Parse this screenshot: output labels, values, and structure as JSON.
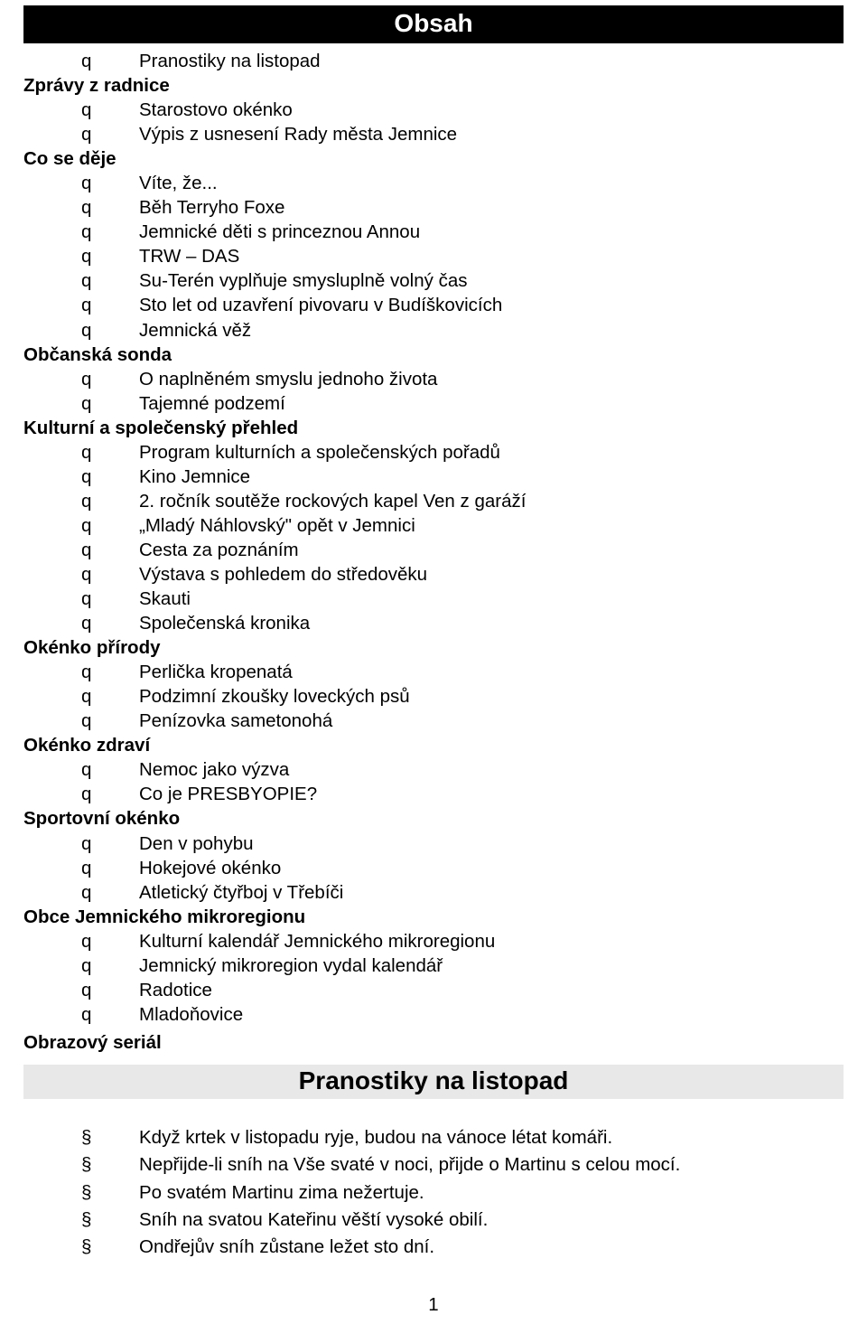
{
  "titles": {
    "obsah": "Obsah",
    "pranostiky": "Pranostiky na  listopad"
  },
  "bullets": {
    "q": "q",
    "section": "§"
  },
  "sections": [
    {
      "head": null,
      "standalone_after": false,
      "items": [
        "Pranostiky na listopad"
      ]
    },
    {
      "head": "Zprávy z radnice",
      "items": [
        "Starostovo okénko",
        "Výpis z usnesení Rady města Jemnice"
      ]
    },
    {
      "head": "Co se děje",
      "items": [
        "Víte, že...",
        "Běh Terryho Foxe",
        "Jemnické děti s princeznou Annou",
        "TRW – DAS",
        "Su-Terén vyplňuje smysluplně volný čas",
        "Sto let od uzavření pivovaru v Budíškovicích",
        "Jemnická věž"
      ]
    },
    {
      "head": "Občanská sonda",
      "items": [
        "O naplněném smyslu jednoho života",
        "Tajemné podzemí"
      ]
    },
    {
      "head": "Kulturní a společenský přehled",
      "items": [
        "Program kulturních a společenských pořadů",
        "Kino Jemnice",
        "2. ročník soutěže rockových kapel Ven z garáží",
        "„Mladý Náhlovský\" opět v Jemnici",
        "Cesta za poznáním",
        "Výstava s pohledem do středověku",
        "Skauti",
        "Společenská kronika"
      ]
    },
    {
      "head": "Okénko přírody",
      "items": [
        "Perlička kropenatá",
        "Podzimní zkoušky loveckých psů",
        "Penízovka sametonohá"
      ]
    },
    {
      "head": "Okénko zdraví",
      "items": [
        "Nemoc jako výzva",
        "Co je PRESBYOPIE?"
      ]
    },
    {
      "head": "Sportovní okénko",
      "items": [
        "Den v pohybu",
        "Hokejové okénko",
        "Atletický čtyřboj v Třebíči"
      ]
    },
    {
      "head": "Obce Jemnického mikroregionu",
      "items": [
        "Kulturní kalendář Jemnického mikroregionu",
        "Jemnický mikroregion vydal kalendář",
        "Radotice",
        "Mladoňovice"
      ]
    }
  ],
  "standalone_heading": "Obrazový seriál",
  "pranostiky_items": [
    "Když krtek v listopadu ryje, budou na vánoce létat komáři.",
    "Nepřijde-li sníh na Vše svaté v noci, přijde o Martinu s celou mocí.",
    "Po svatém Martinu zima nežertuje.",
    "Sníh na svatou Kateřinu věští vysoké obilí.",
    "Ondřejův sníh zůstane ležet sto dní."
  ],
  "page_number": "1",
  "colors": {
    "header_bg": "#000000",
    "header_fg": "#ffffff",
    "title2_bg": "#e8e8e8",
    "text": "#000000",
    "page_bg": "#ffffff"
  }
}
